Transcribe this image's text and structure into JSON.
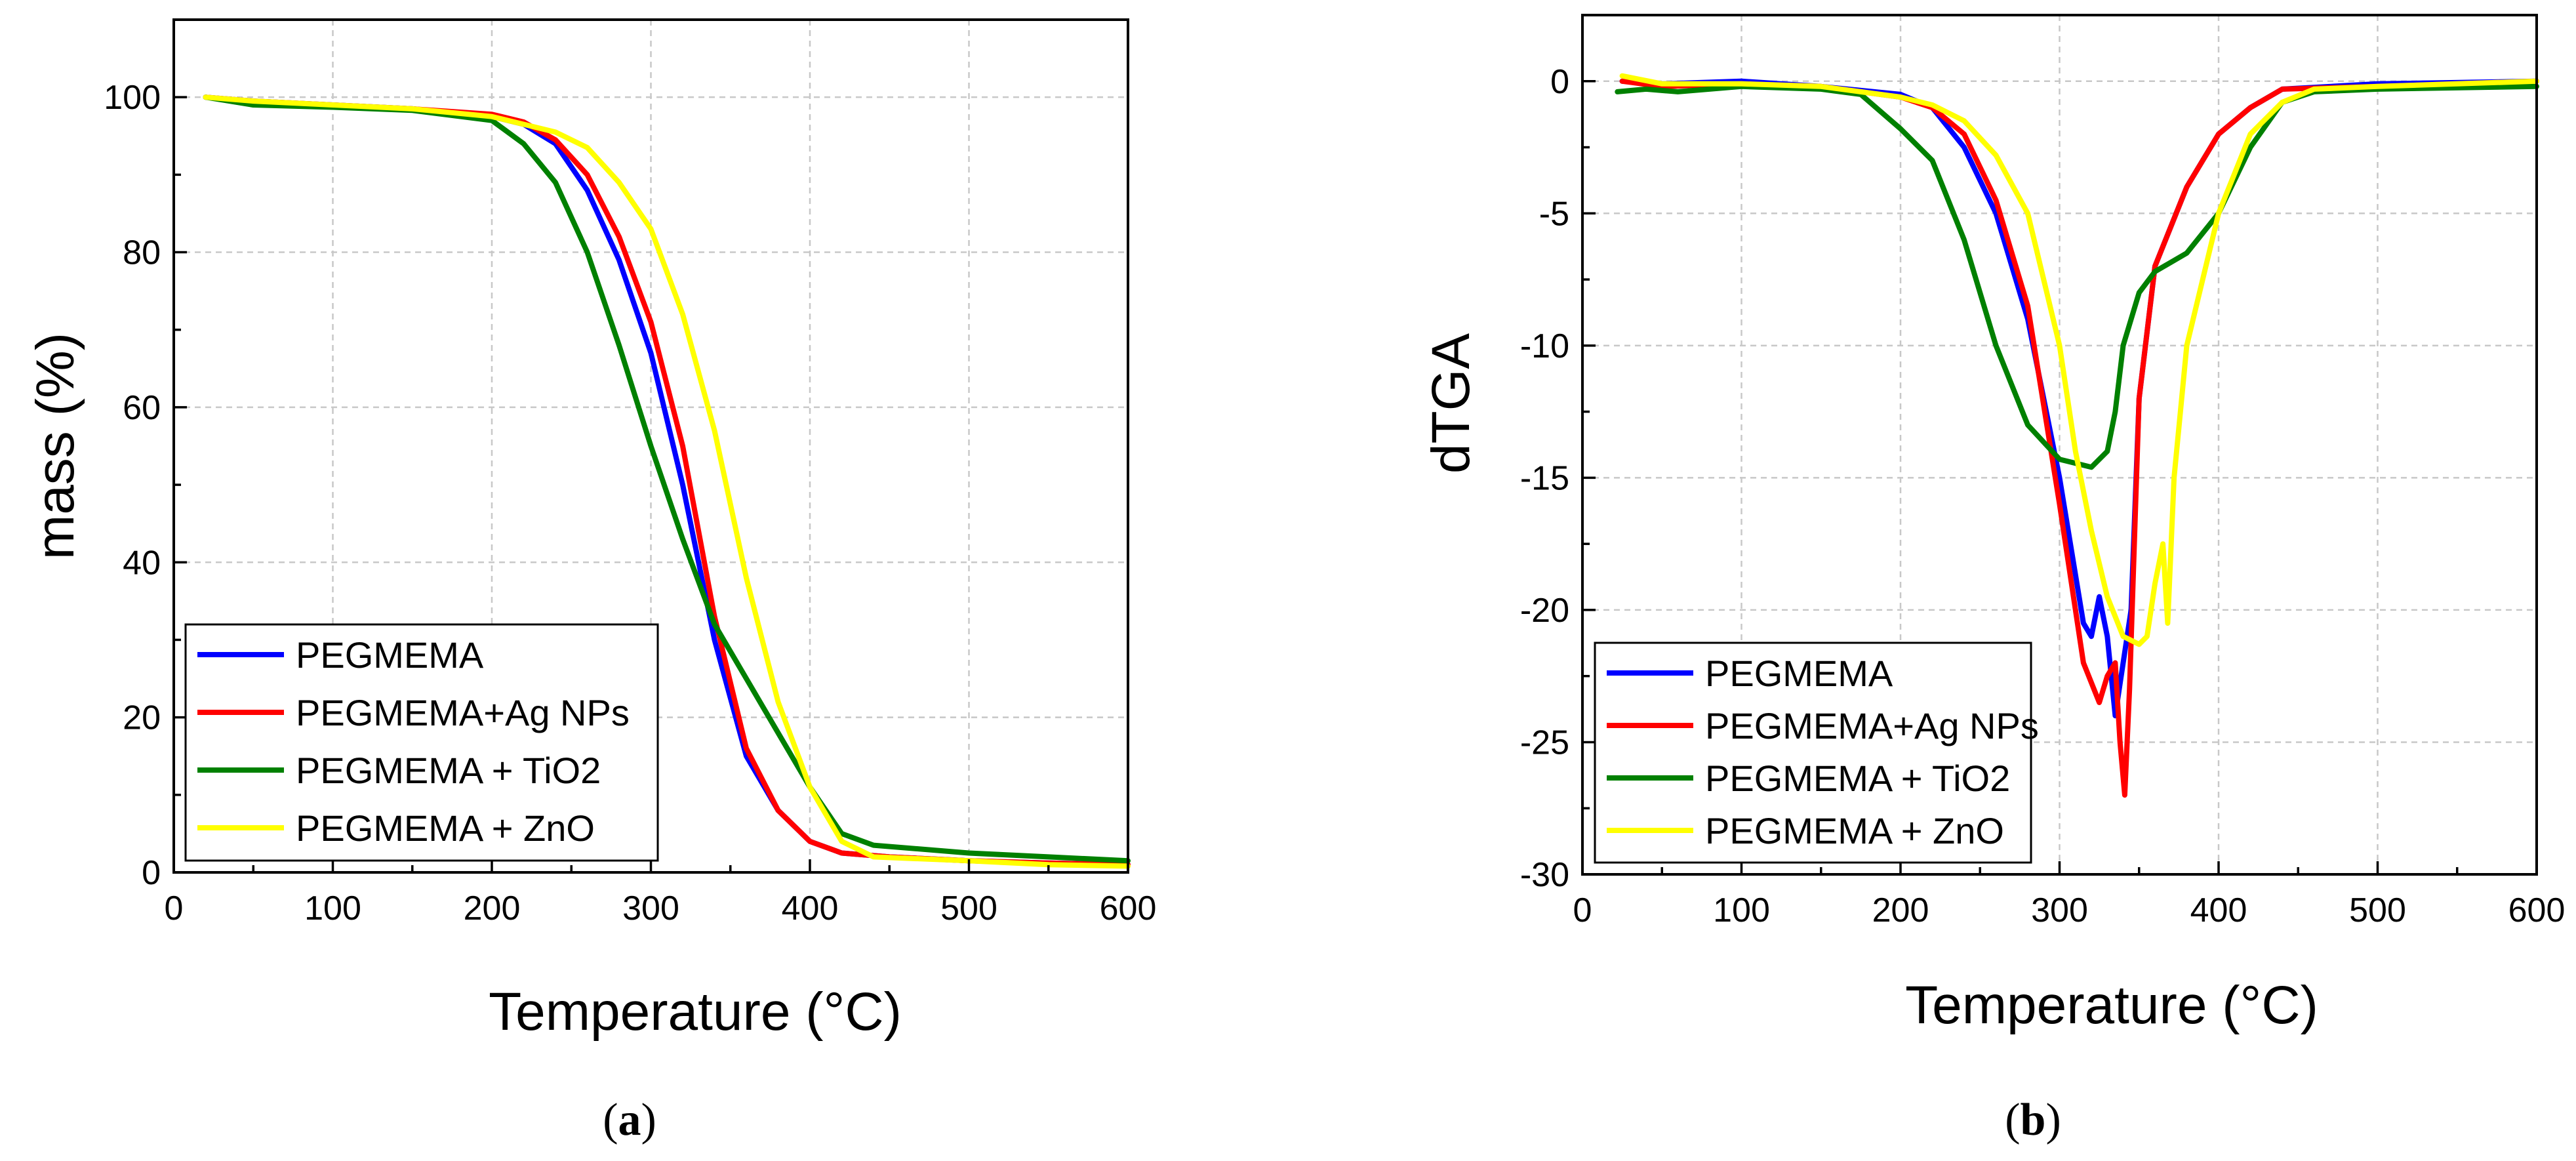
{
  "chart_data": [
    {
      "type": "line",
      "panel_label": "a",
      "title": "",
      "xlabel": "Temperature",
      "xlabel_unit": "°C",
      "ylabel": "mass (%)",
      "xlim": [
        0,
        600
      ],
      "ylim": [
        0,
        110
      ],
      "xticks": [
        "0",
        "100",
        "200",
        "300",
        "400",
        "500",
        "600"
      ],
      "xtick_values": [
        0,
        100,
        200,
        300,
        400,
        500,
        600
      ],
      "yticks": [
        "0",
        "20",
        "40",
        "60",
        "80",
        "100"
      ],
      "ytick_values": [
        0,
        20,
        40,
        60,
        80,
        100
      ],
      "grid": true,
      "legend_position": "bottom-left",
      "series": [
        {
          "name": "PEGMEMA",
          "color": "#0000ff",
          "points": [
            [
              20,
              100
            ],
            [
              50,
              99.5
            ],
            [
              100,
              99
            ],
            [
              150,
              98.5
            ],
            [
              200,
              97.5
            ],
            [
              220,
              96.5
            ],
            [
              240,
              94
            ],
            [
              260,
              88
            ],
            [
              280,
              79
            ],
            [
              300,
              67
            ],
            [
              320,
              50
            ],
            [
              340,
              30
            ],
            [
              360,
              15
            ],
            [
              380,
              8
            ],
            [
              400,
              4
            ],
            [
              420,
              2.5
            ],
            [
              450,
              2
            ],
            [
              500,
              1.5
            ],
            [
              550,
              1.2
            ],
            [
              600,
              1
            ]
          ]
        },
        {
          "name": "PEGMEMA+Ag NPs",
          "color": "#ff0000",
          "points": [
            [
              20,
              100
            ],
            [
              50,
              99.5
            ],
            [
              100,
              99
            ],
            [
              150,
              98.5
            ],
            [
              200,
              97.8
            ],
            [
              220,
              96.8
            ],
            [
              240,
              94.5
            ],
            [
              260,
              90
            ],
            [
              280,
              82
            ],
            [
              300,
              71
            ],
            [
              320,
              55
            ],
            [
              340,
              33
            ],
            [
              360,
              16
            ],
            [
              380,
              8
            ],
            [
              400,
              4
            ],
            [
              420,
              2.5
            ],
            [
              450,
              2
            ],
            [
              500,
              1.5
            ],
            [
              550,
              1.2
            ],
            [
              600,
              1
            ]
          ]
        },
        {
          "name": "PEGMEMA + TiO2",
          "color": "#008000",
          "points": [
            [
              20,
              100
            ],
            [
              50,
              99
            ],
            [
              100,
              98.7
            ],
            [
              150,
              98.3
            ],
            [
              200,
              97
            ],
            [
              220,
              94
            ],
            [
              240,
              89
            ],
            [
              260,
              80
            ],
            [
              280,
              68
            ],
            [
              300,
              55
            ],
            [
              320,
              43
            ],
            [
              340,
              32
            ],
            [
              360,
              25
            ],
            [
              380,
              18
            ],
            [
              400,
              11
            ],
            [
              420,
              5
            ],
            [
              440,
              3.5
            ],
            [
              500,
              2.5
            ],
            [
              550,
              2
            ],
            [
              600,
              1.5
            ]
          ]
        },
        {
          "name": "PEGMEMA + ZnO",
          "color": "#ffff00",
          "points": [
            [
              20,
              100
            ],
            [
              50,
              99.5
            ],
            [
              100,
              99
            ],
            [
              150,
              98.5
            ],
            [
              200,
              97.5
            ],
            [
              240,
              95.5
            ],
            [
              260,
              93.5
            ],
            [
              280,
              89
            ],
            [
              300,
              83
            ],
            [
              320,
              72
            ],
            [
              340,
              57
            ],
            [
              360,
              38
            ],
            [
              380,
              22
            ],
            [
              400,
              11
            ],
            [
              420,
              4
            ],
            [
              440,
              2
            ],
            [
              500,
              1.5
            ],
            [
              550,
              1
            ],
            [
              600,
              0.8
            ]
          ]
        }
      ]
    },
    {
      "type": "line",
      "panel_label": "b",
      "title": "",
      "xlabel": "Temperature",
      "xlabel_unit": "°C",
      "ylabel": "dTGA",
      "xlim": [
        0,
        600
      ],
      "ylim": [
        -30,
        2.5
      ],
      "xticks": [
        "0",
        "100",
        "200",
        "300",
        "400",
        "500",
        "600"
      ],
      "xtick_values": [
        0,
        100,
        200,
        300,
        400,
        500,
        600
      ],
      "yticks": [
        "-30",
        "-25",
        "-20",
        "-15",
        "-10",
        "-5",
        "0"
      ],
      "ytick_values": [
        -30,
        -25,
        -20,
        -15,
        -10,
        -5,
        0
      ],
      "grid": true,
      "legend_position": "bottom-left",
      "series": [
        {
          "name": "PEGMEMA",
          "color": "#0000ff",
          "points": [
            [
              25,
              0
            ],
            [
              50,
              -0.1
            ],
            [
              100,
              0
            ],
            [
              150,
              -0.2
            ],
            [
              200,
              -0.5
            ],
            [
              220,
              -1
            ],
            [
              240,
              -2.5
            ],
            [
              260,
              -5
            ],
            [
              280,
              -9
            ],
            [
              300,
              -15
            ],
            [
              315,
              -20.5
            ],
            [
              320,
              -21
            ],
            [
              325,
              -19.5
            ],
            [
              330,
              -21
            ],
            [
              335,
              -24
            ],
            [
              340,
              -22
            ],
            [
              345,
              -20
            ],
            [
              350,
              -12
            ],
            [
              360,
              -7
            ],
            [
              380,
              -4
            ],
            [
              400,
              -2
            ],
            [
              420,
              -1
            ],
            [
              440,
              -0.3
            ],
            [
              500,
              -0.1
            ],
            [
              600,
              0
            ]
          ]
        },
        {
          "name": "PEGMEMA+Ag NPs",
          "color": "#ff0000",
          "points": [
            [
              25,
              0
            ],
            [
              50,
              -0.2
            ],
            [
              100,
              -0.1
            ],
            [
              150,
              -0.2
            ],
            [
              200,
              -0.6
            ],
            [
              220,
              -1
            ],
            [
              240,
              -2
            ],
            [
              260,
              -4.5
            ],
            [
              280,
              -8.5
            ],
            [
              300,
              -16
            ],
            [
              315,
              -22
            ],
            [
              325,
              -23.5
            ],
            [
              330,
              -22.5
            ],
            [
              335,
              -22
            ],
            [
              338,
              -25
            ],
            [
              341,
              -27
            ],
            [
              344,
              -23
            ],
            [
              350,
              -12
            ],
            [
              360,
              -7
            ],
            [
              380,
              -4
            ],
            [
              400,
              -2
            ],
            [
              420,
              -1
            ],
            [
              440,
              -0.3
            ],
            [
              500,
              -0.2
            ],
            [
              600,
              0
            ]
          ]
        },
        {
          "name": "PEGMEMA + TiO2",
          "color": "#008000",
          "points": [
            [
              22,
              -0.4
            ],
            [
              40,
              -0.3
            ],
            [
              60,
              -0.4
            ],
            [
              100,
              -0.2
            ],
            [
              150,
              -0.3
            ],
            [
              175,
              -0.5
            ],
            [
              200,
              -1.8
            ],
            [
              220,
              -3
            ],
            [
              240,
              -6
            ],
            [
              260,
              -10
            ],
            [
              280,
              -13
            ],
            [
              300,
              -14.3
            ],
            [
              320,
              -14.6
            ],
            [
              330,
              -14
            ],
            [
              335,
              -12.5
            ],
            [
              340,
              -10
            ],
            [
              350,
              -8
            ],
            [
              360,
              -7.2
            ],
            [
              380,
              -6.5
            ],
            [
              400,
              -5
            ],
            [
              420,
              -2.5
            ],
            [
              440,
              -0.8
            ],
            [
              460,
              -0.4
            ],
            [
              500,
              -0.3
            ],
            [
              600,
              -0.2
            ]
          ]
        },
        {
          "name": "PEGMEMA + ZnO",
          "color": "#ffff00",
          "points": [
            [
              25,
              0.2
            ],
            [
              50,
              -0.1
            ],
            [
              100,
              -0.1
            ],
            [
              150,
              -0.2
            ],
            [
              200,
              -0.6
            ],
            [
              220,
              -0.9
            ],
            [
              240,
              -1.5
            ],
            [
              260,
              -2.8
            ],
            [
              280,
              -5
            ],
            [
              300,
              -10
            ],
            [
              310,
              -14
            ],
            [
              320,
              -17
            ],
            [
              330,
              -19.5
            ],
            [
              340,
              -21
            ],
            [
              350,
              -21.3
            ],
            [
              355,
              -21
            ],
            [
              360,
              -19
            ],
            [
              365,
              -17.5
            ],
            [
              368,
              -20.5
            ],
            [
              372,
              -15
            ],
            [
              380,
              -10
            ],
            [
              400,
              -5
            ],
            [
              420,
              -2
            ],
            [
              440,
              -0.8
            ],
            [
              460,
              -0.3
            ],
            [
              500,
              -0.2
            ],
            [
              600,
              0
            ]
          ]
        }
      ]
    }
  ]
}
